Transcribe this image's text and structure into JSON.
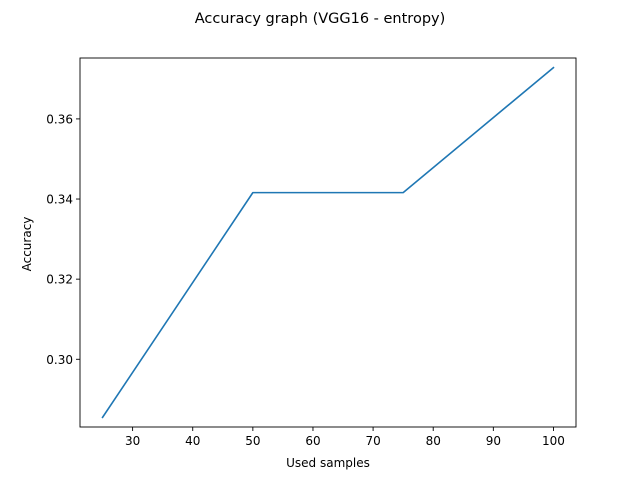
{
  "chart_data": {
    "type": "line",
    "title": "Accuracy graph (VGG16 - entropy)",
    "xlabel": "Used samples",
    "ylabel": "Accuracy",
    "xlim": [
      21.25,
      103.75
    ],
    "ylim": [
      0.2831,
      0.3752
    ],
    "xticks": [
      30,
      40,
      50,
      60,
      70,
      80,
      90,
      100
    ],
    "yticks": [
      0.3,
      0.32,
      0.34,
      0.36
    ],
    "ytick_labels": [
      "0.30",
      "0.32",
      "0.34",
      "0.36"
    ],
    "grid": false,
    "series": [
      {
        "color": "#1f77b4",
        "x": [
          25,
          50,
          75,
          100
        ],
        "y": [
          0.2855,
          0.3416,
          0.3416,
          0.3728
        ]
      }
    ]
  }
}
